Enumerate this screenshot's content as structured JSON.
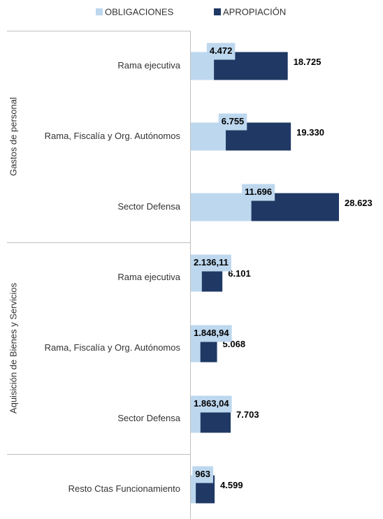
{
  "chart_data": {
    "type": "overlap-bar-horizontal",
    "groups": [
      {
        "name": "Gastos de personal",
        "categories": [
          "Rama ejecutiva",
          "Rama, Fiscalía y Org. Autónomos",
          "Sector Defensa"
        ]
      },
      {
        "name": "Aquisición de Bienes y Servicios",
        "categories": [
          "Rama ejecutiva",
          "Rama, Fiscalía y Org. Autónomos",
          "Sector Defensa"
        ]
      },
      {
        "name": null,
        "categories": [
          "Resto Ctas Funcionamiento"
        ]
      }
    ],
    "series": [
      {
        "name": "OBLIGACIONES",
        "color": "#bdd7ee",
        "values": [
          4472,
          6755,
          11696,
          2136.11,
          1848.94,
          1863.04,
          963
        ],
        "value_labels": [
          "4.472",
          "6.755",
          "11.696",
          "2.136,11",
          "1.848,94",
          "1.863,04",
          "963"
        ]
      },
      {
        "name": "APROPIACIÓN",
        "color": "#1f3864",
        "values": [
          18725,
          19330,
          28623,
          6101,
          5068,
          7703,
          4599
        ],
        "value_labels": [
          "18.725",
          "19.330",
          "28.623",
          "6.101",
          "5.068",
          "7.703",
          "4.599"
        ]
      }
    ],
    "legend": "top"
  }
}
